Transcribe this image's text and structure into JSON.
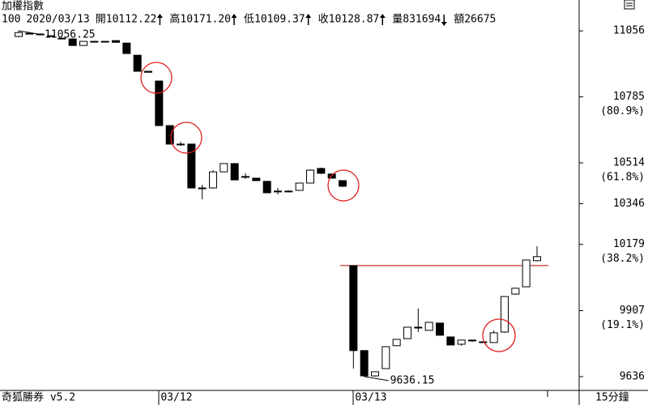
{
  "header": {
    "title": "加權指數",
    "info": [
      {
        "text": "100"
      },
      {
        "text": "2020/03/13"
      },
      {
        "text": "開10112.22",
        "arrow": "up"
      },
      {
        "text": "高10171.20",
        "arrow": "up"
      },
      {
        "text": "低10109.37",
        "arrow": "up"
      },
      {
        "text": "收10128.87",
        "arrow": "up"
      },
      {
        "text": "量831694",
        "arrow": "down"
      },
      {
        "text": "額26675"
      }
    ]
  },
  "chart_data": {
    "type": "candlestick",
    "categories": [
      null,
      null,
      null,
      null,
      null,
      null,
      null,
      null,
      null,
      null,
      null,
      null,
      null,
      "03/12",
      null,
      null,
      null,
      null,
      null,
      null,
      null,
      null,
      null,
      null,
      null,
      null,
      null,
      null,
      null,
      null,
      null,
      "03/13",
      null,
      null,
      null,
      null,
      null,
      null,
      null,
      null,
      null,
      null,
      null,
      null,
      null,
      null,
      null,
      null,
      null
    ],
    "open": [
      11033,
      11046,
      11043,
      11036,
      11026,
      11023,
      10996,
      11013,
      11013,
      11016,
      11006,
      10956,
      10890,
      10850,
      10667,
      10591,
      10591,
      10411,
      10411,
      10477,
      10511,
      10458,
      10451,
      10438,
      10398,
      10398,
      10401,
      10431,
      10491,
      10468,
      10441,
      10092,
      9743,
      9639,
      9669,
      9763,
      9792,
      9836,
      9826,
      9856,
      9799,
      9769,
      9783,
      9779,
      9776,
      9819,
      9975,
      10005,
      10112.22
    ],
    "high": [
      11056,
      11049,
      11046,
      11036,
      11026,
      11023,
      11013,
      11013,
      11013,
      11016,
      11006,
      10956,
      10890,
      10850,
      10667,
      10601,
      10591,
      10424,
      10484,
      10511,
      10511,
      10471,
      10451,
      10438,
      10411,
      10401,
      10431,
      10487,
      10494,
      10471,
      10441,
      10092,
      9743,
      9656,
      9759,
      9789,
      9839,
      9916,
      9859,
      9856,
      9799,
      9786,
      9786,
      9779,
      9826,
      9965,
      9999,
      10115,
      10171.2
    ],
    "low": [
      11030,
      11046,
      11043,
      11036,
      11026,
      10996,
      10996,
      11013,
      11013,
      11009,
      10963,
      10890,
      10886,
      10667,
      10591,
      10584,
      10411,
      10364,
      10408,
      10477,
      10444,
      10448,
      10441,
      10391,
      10384,
      10398,
      10401,
      10431,
      10468,
      10451,
      10414,
      9669,
      9636,
      9636,
      9669,
      9763,
      9792,
      9819,
      9826,
      9806,
      9766,
      9763,
      9779,
      9776,
      9776,
      9816,
      9972,
      10005,
      10109.37
    ],
    "close": [
      11049,
      11046,
      11043,
      11036,
      11026,
      10996,
      11013,
      11013,
      11013,
      11009,
      10963,
      10890,
      10886,
      10667,
      10591,
      10591,
      10411,
      10411,
      10477,
      10511,
      10444,
      10458,
      10441,
      10391,
      10398,
      10398,
      10431,
      10484,
      10471,
      10451,
      10418,
      9743,
      9639,
      9656,
      9759,
      9789,
      9839,
      9839,
      9859,
      9806,
      9766,
      9786,
      9786,
      9776,
      9816,
      9965,
      9999,
      10115,
      10128.87
    ],
    "up_color": "#ffffff",
    "down_color": "#000000",
    "ylim": [
      9586,
      11083
    ],
    "yticks": [
      11056,
      10785,
      10514,
      10346,
      10179,
      9907,
      9636
    ],
    "ytick_notes": [
      null,
      "(80.9%)",
      "(61.8%)",
      null,
      "(38.2%)",
      "(19.1%)",
      null
    ],
    "annotations": [
      {
        "text": "11056.25",
        "index": 0,
        "value": 11056.25
      },
      {
        "text": "9636.15",
        "index": 32,
        "value": 9636.15
      }
    ],
    "reference_line": {
      "value": 10092,
      "color": "#d00000"
    }
  },
  "footer": {
    "brand": "奇狐勝券 v5.2",
    "period": "15分鐘"
  }
}
